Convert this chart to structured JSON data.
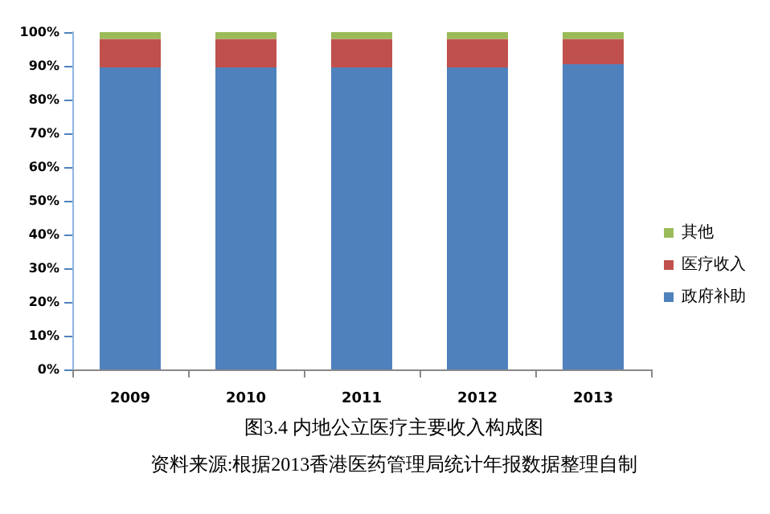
{
  "chart_data": {
    "type": "bar",
    "title": "图3.4 内地公立医疗主要收入构成图",
    "annotations": [
      "资料来源:根据2013香港医药管理局统计年报数据整理自制"
    ],
    "categories": [
      "2009",
      "2010",
      "2011",
      "2012",
      "2013"
    ],
    "stacked": true,
    "series": [
      {
        "name": "政府补助",
        "color": "#4f81bd",
        "values": [
          89.5,
          89.5,
          89.5,
          89.5,
          90.5
        ]
      },
      {
        "name": "医疗收入",
        "color": "#c0504d",
        "values": [
          8.5,
          8.5,
          8.5,
          8.5,
          7.5
        ]
      },
      {
        "name": "其他",
        "color": "#9bbb59",
        "values": [
          2,
          2,
          2,
          2,
          2
        ]
      }
    ],
    "ylim": [
      0,
      100
    ],
    "yticks": [
      {
        "value": 0,
        "label": "0%"
      },
      {
        "value": 10,
        "label": "10%"
      },
      {
        "value": 20,
        "label": "20%"
      },
      {
        "value": 30,
        "label": "30%"
      },
      {
        "value": 40,
        "label": "40%"
      },
      {
        "value": 50,
        "label": "50%"
      },
      {
        "value": 60,
        "label": "60%"
      },
      {
        "value": 70,
        "label": "70%"
      },
      {
        "value": 80,
        "label": "80%"
      },
      {
        "value": 90,
        "label": "90%"
      },
      {
        "value": 100,
        "label": "100%"
      }
    ],
    "grid": false,
    "legend": "right"
  }
}
